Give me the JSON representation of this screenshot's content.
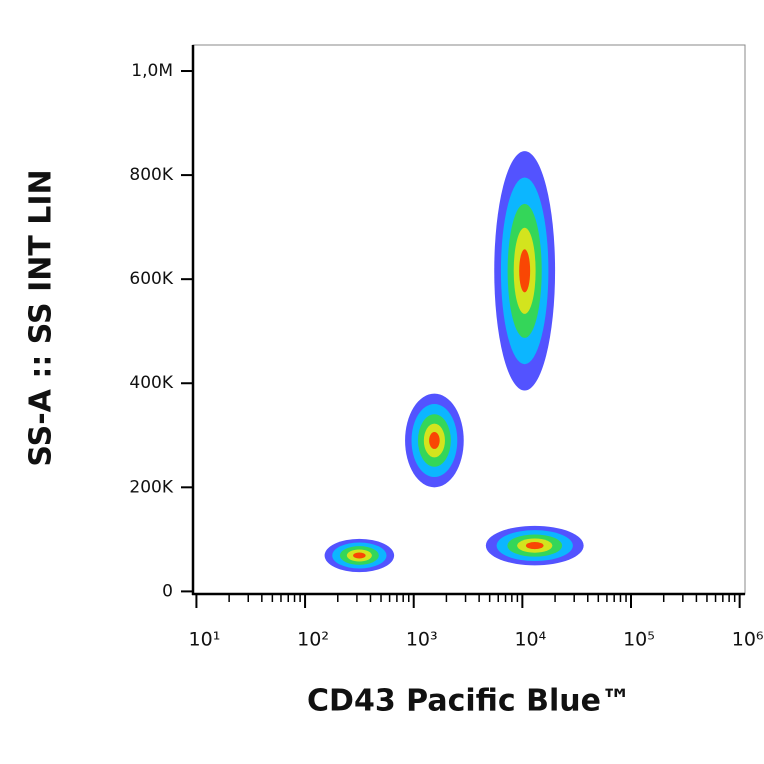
{
  "chart_data": {
    "type": "density",
    "x_label": "CD43 Pacific Blue™",
    "y_label": "SS-A :: SS INT LIN",
    "x_scale": "log",
    "xlim": [
      9.3,
      1120000
    ],
    "xticks": [
      {
        "value": 10,
        "label": "10¹"
      },
      {
        "value": 100,
        "label": "10²"
      },
      {
        "value": 1000,
        "label": "10³"
      },
      {
        "value": 10000,
        "label": "10⁴"
      },
      {
        "value": 100000,
        "label": "10⁵"
      },
      {
        "value": 1000000,
        "label": "10⁶"
      }
    ],
    "ylim": [
      -5000,
      1050000
    ],
    "yticks": [
      0,
      {
        "value": 200000,
        "label": "200K"
      },
      {
        "value": 400000,
        "label": "400K"
      },
      {
        "value": 600000,
        "label": "600K"
      },
      {
        "value": 800000,
        "label": "800K"
      },
      {
        "value": 1000000,
        "label": "1,0M"
      }
    ],
    "density_colors": [
      "#1a1aff",
      "#00c8ff",
      "#3cdc3c",
      "#f0e614",
      "#ff2a00"
    ],
    "populations": [
      {
        "x": 316,
        "y": 69000,
        "x_spread": 0.32,
        "y_spread": 32000
      },
      {
        "x": 1550,
        "y": 290000,
        "x_spread": 0.27,
        "y_spread": 90000
      },
      {
        "x": 10500,
        "y": 616000,
        "x_spread": 0.28,
        "y_spread": 230000
      },
      {
        "x": 13000,
        "y": 88000,
        "x_spread": 0.45,
        "y_spread": 38000
      }
    ]
  }
}
